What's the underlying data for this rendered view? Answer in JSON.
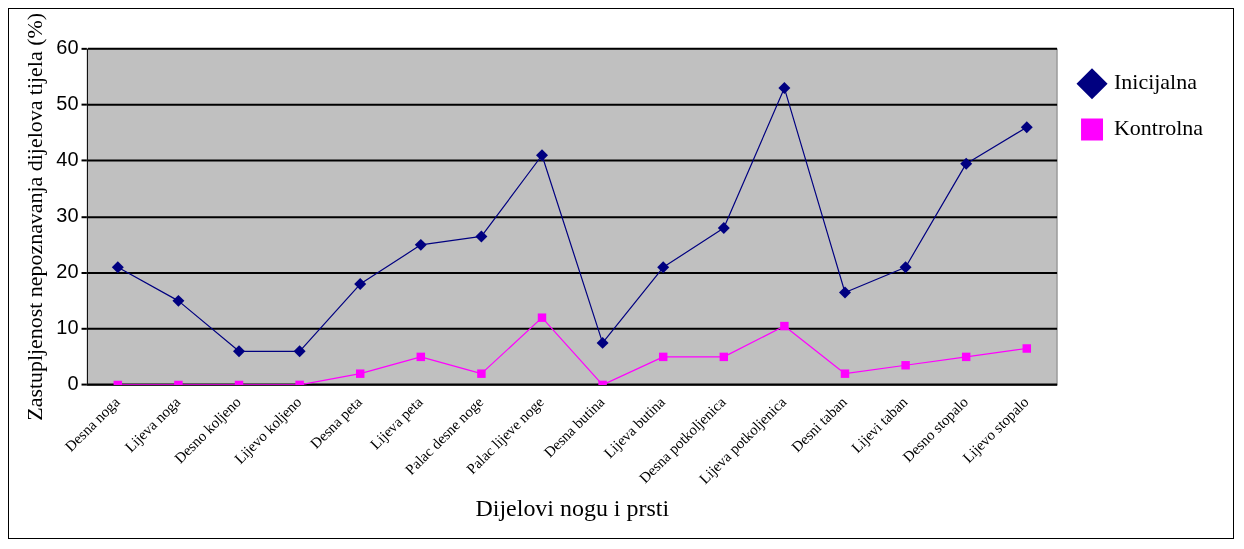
{
  "chart_data": {
    "type": "line",
    "xlabel": "Dijelovi nogu i prsti",
    "ylabel": "Zastupljenost nepoznavanja dijelova tijela (%)",
    "categories": [
      "Desna noga",
      "Lijeva noga",
      "Desno koljeno",
      "Lijevo koljeno",
      "Desna peta",
      "Lijeva peta",
      "Palac desne noge",
      "Palac lijeve noge",
      "Desna butina",
      "Lijeva butina",
      "Desna potkoljenica",
      "Lijeva potkoljenica",
      "Desni taban",
      "Lijevi taban",
      "Desno stopalo",
      "Lijevo stopalo"
    ],
    "series": [
      {
        "name": "Inicijalna",
        "color": "#000080",
        "marker": "diamond",
        "values": [
          21,
          15,
          6,
          6,
          18,
          25,
          26.5,
          41,
          7.5,
          21,
          28,
          53,
          16.5,
          21,
          39.5,
          46
        ]
      },
      {
        "name": "Kontrolna",
        "color": "#ff00ff",
        "marker": "square",
        "values": [
          0,
          0,
          0,
          0,
          2,
          5,
          2,
          12,
          0,
          5,
          5,
          10.5,
          2,
          3.5,
          5,
          6.5
        ]
      }
    ],
    "ylim": [
      0,
      60
    ],
    "yticks": [
      0,
      10,
      20,
      30,
      40,
      50,
      60
    ],
    "grid": "y",
    "legend": "right",
    "line_style": "solid"
  }
}
